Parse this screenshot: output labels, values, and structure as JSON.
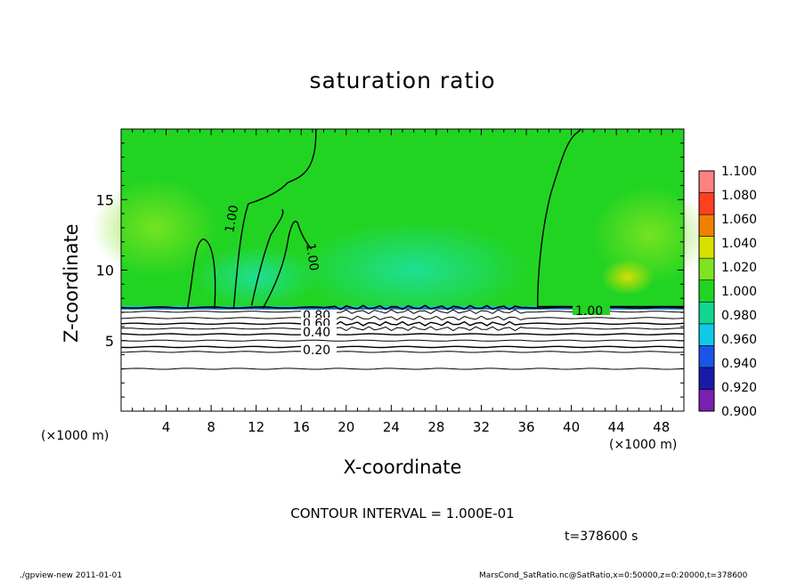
{
  "chart_data": {
    "type": "heatmap",
    "title": "saturation ratio",
    "xlabel": "X-coordinate",
    "ylabel": "Z-coordinate",
    "x_unit_label": "(×1000 m)",
    "xlim": [
      0,
      50
    ],
    "ylim": [
      0,
      20
    ],
    "x_ticks": [
      4,
      8,
      12,
      16,
      20,
      24,
      28,
      32,
      36,
      40,
      44,
      48
    ],
    "y_ticks": [
      5,
      10,
      15
    ],
    "colorbar": {
      "levels": [
        0.9,
        0.92,
        0.94,
        0.96,
        0.98,
        1.0,
        1.02,
        1.04,
        1.06,
        1.08,
        1.1
      ],
      "labels": [
        "0.900",
        "0.920",
        "0.940",
        "0.960",
        "0.980",
        "1.000",
        "1.020",
        "1.040",
        "1.060",
        "1.080",
        "1.100"
      ],
      "colors": [
        "#7a1fb0",
        "#1a1aa8",
        "#1a55e6",
        "#10c8e8",
        "#10d890",
        "#22d422",
        "#7ee422",
        "#d8e000",
        "#f08000",
        "#ff4020",
        "#ff8080"
      ]
    },
    "contour_labels": [
      "1.00",
      "1.00",
      "1.00",
      "0.80",
      "0.60",
      "0.40",
      "0.20"
    ],
    "contour_interval_text": "CONTOUR INTERVAL = 1.000E-01",
    "time_text": "t=378600  s"
  },
  "footer": {
    "left": "./gpview-new   2011-01-01",
    "right": "MarsCond_SatRatio.nc@SatRatio,x=0:50000,z=0:20000,t=378600"
  }
}
